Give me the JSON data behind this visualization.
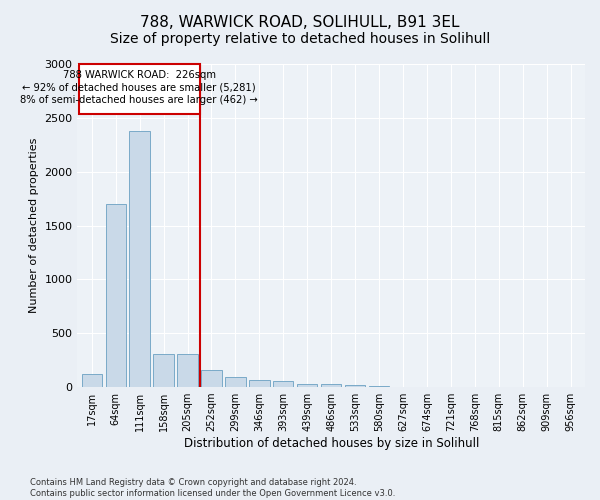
{
  "title": "788, WARWICK ROAD, SOLIHULL, B91 3EL",
  "subtitle": "Size of property relative to detached houses in Solihull",
  "xlabel": "Distribution of detached houses by size in Solihull",
  "ylabel": "Number of detached properties",
  "categories": [
    "17sqm",
    "64sqm",
    "111sqm",
    "158sqm",
    "205sqm",
    "252sqm",
    "299sqm",
    "346sqm",
    "393sqm",
    "439sqm",
    "486sqm",
    "533sqm",
    "580sqm",
    "627sqm",
    "674sqm",
    "721sqm",
    "768sqm",
    "815sqm",
    "862sqm",
    "909sqm",
    "956sqm"
  ],
  "values": [
    120,
    1700,
    2380,
    310,
    310,
    155,
    90,
    70,
    55,
    30,
    30,
    20,
    10,
    5,
    5,
    5,
    5,
    0,
    0,
    0,
    0
  ],
  "bar_color": "#c9d9e8",
  "bar_edge_color": "#7aaac8",
  "vline_color": "#cc0000",
  "annotation_box_color": "#cc0000",
  "annotation_text_line1": "788 WARWICK ROAD:  226sqm",
  "annotation_text_line2": "← 92% of detached houses are smaller (5,281)",
  "annotation_text_line3": "8% of semi-detached houses are larger (462) →",
  "footnote1": "Contains HM Land Registry data © Crown copyright and database right 2024.",
  "footnote2": "Contains public sector information licensed under the Open Government Licence v3.0.",
  "ylim": [
    0,
    3000
  ],
  "yticks": [
    0,
    500,
    1000,
    1500,
    2000,
    2500,
    3000
  ],
  "bg_color": "#eaeff5",
  "plot_bg_color": "#edf2f7",
  "title_fontsize": 11,
  "subtitle_fontsize": 10
}
